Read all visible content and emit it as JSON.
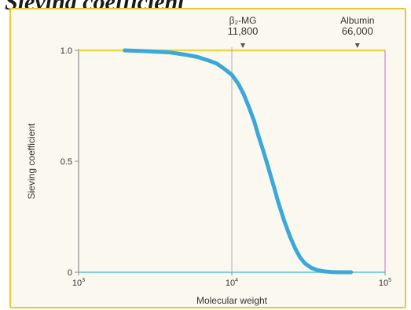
{
  "title": "Sieving coefficient",
  "chart_data": {
    "type": "line",
    "title": "Sieving coefficient",
    "xlabel": "Molecular weight",
    "ylabel": "Sieving coefficient",
    "x_scale": "log",
    "xlim": [
      1000,
      100000
    ],
    "ylim": [
      0,
      1.0
    ],
    "x_ticks": [
      {
        "value": 1000,
        "base": "10",
        "exp": "3"
      },
      {
        "value": 10000,
        "base": "10",
        "exp": "4"
      },
      {
        "value": 100000,
        "base": "10",
        "exp": "5"
      }
    ],
    "y_ticks": [
      {
        "value": 0,
        "label": "0"
      },
      {
        "value": 0.5,
        "label": "0.5"
      },
      {
        "value": 1.0,
        "label": "1.0"
      }
    ],
    "series": [
      {
        "color": "#3ba8d8",
        "x": [
          2000,
          3000,
          4000,
          5000,
          6000,
          7000,
          8000,
          9000,
          10000,
          11000,
          12000,
          13000,
          14000,
          15000,
          16000,
          17000,
          18000,
          19000,
          20000,
          22000,
          24000,
          26000,
          28000,
          30000,
          33000,
          36000,
          40000,
          45000,
          50000,
          60000
        ],
        "y": [
          1.0,
          0.995,
          0.99,
          0.98,
          0.97,
          0.955,
          0.94,
          0.915,
          0.89,
          0.85,
          0.8,
          0.74,
          0.68,
          0.61,
          0.55,
          0.49,
          0.43,
          0.375,
          0.32,
          0.23,
          0.16,
          0.105,
          0.065,
          0.04,
          0.02,
          0.01,
          0.004,
          0.001,
          0.0,
          0.0
        ]
      }
    ],
    "annotations": [
      {
        "name": "beta2-mg",
        "label": "β₂-MG",
        "value_label": "11,800",
        "x": 11800
      },
      {
        "name": "albumin",
        "label": "Albumin",
        "value_label": "66,000",
        "x": 66000
      }
    ],
    "reference_line_x": 10000,
    "grid": false,
    "colors": {
      "top_line": "#e8d84a",
      "bottom_line": "#7fd0e8",
      "marker": "#555555",
      "axis": "#8a8a8a"
    }
  }
}
